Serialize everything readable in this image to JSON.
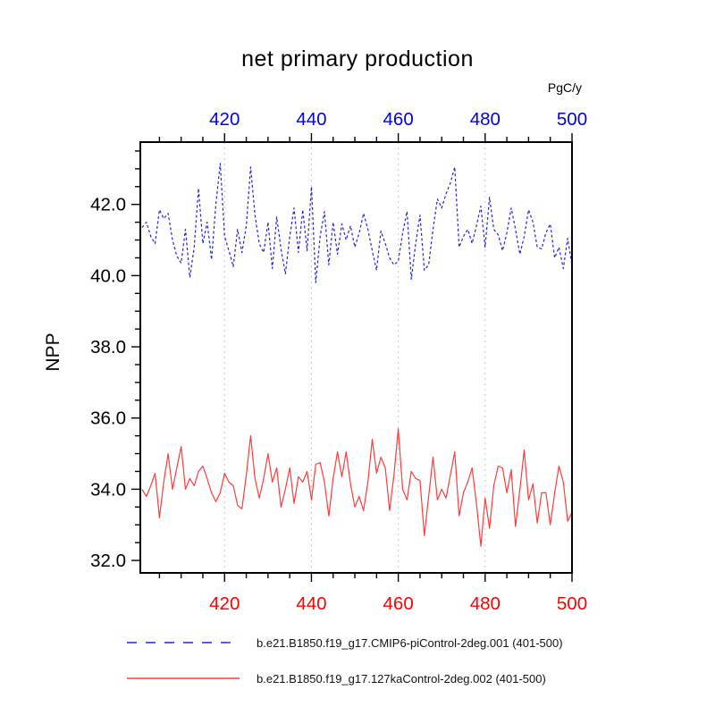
{
  "title": "net primary production",
  "unit_label": "PgC/y",
  "y_axis_label": "NPP",
  "legend": [
    {
      "label": "b.e21.B1850.f19_g17.CMIP6-piControl-2deg.001 (401-500)",
      "color": "#2222dd",
      "dash": "11 10"
    },
    {
      "label": "b.e21.B1850.f19_g17.127kaControl-2deg.002 (401-500)",
      "color": "#ff3b3b",
      "dash": ""
    }
  ],
  "colors": {
    "frame": "#000000",
    "gridline": "#c8c8c8",
    "top_axis_labels": "#0000ee",
    "bottom_axis_labels": "#ff0000",
    "left_axis_labels": "#000000"
  },
  "chart_data": {
    "type": "line",
    "title": "net primary production",
    "ylabel": "NPP",
    "unit": "PgC/y",
    "xlim": [
      400.6,
      500
    ],
    "ylim": [
      31.65,
      43.75
    ],
    "x_major_ticks": [
      420,
      440,
      460,
      480,
      500
    ],
    "x_minor_start": 405,
    "x_minor_end": 495,
    "x_minor_step": 5,
    "y_major_ticks": [
      32.0,
      34.0,
      36.0,
      38.0,
      40.0,
      42.0
    ],
    "y_minor_step": 0.5,
    "gridlines_x": [
      420,
      440,
      460,
      480
    ],
    "grid_style": "vertical-dashed",
    "legend_position": "bottom-left",
    "x": [
      401,
      402,
      403,
      404,
      405,
      406,
      407,
      408,
      409,
      410,
      411,
      412,
      413,
      414,
      415,
      416,
      417,
      418,
      419,
      420,
      421,
      422,
      423,
      424,
      425,
      426,
      427,
      428,
      429,
      430,
      431,
      432,
      433,
      434,
      435,
      436,
      437,
      438,
      439,
      440,
      441,
      442,
      443,
      444,
      445,
      446,
      447,
      448,
      449,
      450,
      451,
      452,
      453,
      454,
      455,
      456,
      457,
      458,
      459,
      460,
      461,
      462,
      463,
      464,
      465,
      466,
      467,
      468,
      469,
      470,
      471,
      472,
      473,
      474,
      475,
      476,
      477,
      478,
      479,
      480,
      481,
      482,
      483,
      484,
      485,
      486,
      487,
      488,
      489,
      490,
      491,
      492,
      493,
      494,
      495,
      496,
      497,
      498,
      499,
      500
    ],
    "series": [
      {
        "id": "piControl",
        "name": "b.e21.B1850.f19_g17.CMIP6-piControl-2deg.001 (401-500)",
        "color": "#2222dd",
        "dash": "3 2.6",
        "values": [
          41.35,
          41.5,
          41.1,
          40.9,
          41.85,
          41.6,
          41.75,
          41.0,
          40.55,
          40.35,
          41.3,
          39.95,
          40.8,
          42.45,
          40.9,
          41.5,
          40.45,
          42.0,
          43.15,
          41.1,
          40.7,
          40.25,
          41.3,
          40.65,
          41.4,
          43.05,
          41.7,
          40.9,
          40.65,
          41.5,
          40.2,
          41.65,
          40.75,
          40.05,
          41.1,
          41.9,
          40.65,
          41.85,
          40.7,
          42.5,
          39.8,
          41.1,
          41.8,
          40.3,
          41.5,
          40.6,
          41.45,
          41.0,
          41.4,
          40.8,
          41.2,
          41.75,
          41.3,
          40.7,
          40.15,
          41.25,
          40.9,
          40.5,
          40.3,
          40.4,
          41.2,
          41.8,
          39.9,
          40.9,
          41.7,
          40.15,
          40.3,
          41.3,
          42.15,
          41.9,
          42.3,
          42.6,
          43.05,
          40.8,
          41.1,
          41.3,
          40.9,
          41.4,
          41.95,
          40.8,
          42.2,
          41.3,
          41.15,
          40.7,
          41.2,
          41.9,
          41.3,
          40.6,
          41.1,
          41.85,
          41.5,
          40.8,
          40.75,
          41.2,
          41.45,
          40.5,
          40.8,
          40.2,
          41.05,
          40.3
        ]
      },
      {
        "id": "127kaControl",
        "name": "b.e21.B1850.f19_g17.127kaControl-2deg.002 (401-500)",
        "color": "#ff3b3b",
        "dash": "",
        "values": [
          34.0,
          33.8,
          34.1,
          34.45,
          33.2,
          34.2,
          35.0,
          34.0,
          34.6,
          35.2,
          34.0,
          34.3,
          34.1,
          34.5,
          34.65,
          34.3,
          33.9,
          33.65,
          33.9,
          34.45,
          34.2,
          34.1,
          33.55,
          33.45,
          34.4,
          35.5,
          34.3,
          33.75,
          34.3,
          35.0,
          34.2,
          34.6,
          33.5,
          34.0,
          34.6,
          33.6,
          34.35,
          34.2,
          34.5,
          33.7,
          34.7,
          34.75,
          34.2,
          33.25,
          34.3,
          35.05,
          34.35,
          35.05,
          34.15,
          33.5,
          33.8,
          33.4,
          34.2,
          35.4,
          34.45,
          34.9,
          34.6,
          33.4,
          34.4,
          35.7,
          34.0,
          33.7,
          34.5,
          34.3,
          34.25,
          32.7,
          33.8,
          34.9,
          33.7,
          34.0,
          33.75,
          34.4,
          35.05,
          33.25,
          33.9,
          34.2,
          34.6,
          33.6,
          32.4,
          33.75,
          32.9,
          34.1,
          34.65,
          34.6,
          33.9,
          34.55,
          32.95,
          34.0,
          35.1,
          33.7,
          34.15,
          33.05,
          33.9,
          33.9,
          33.0,
          33.9,
          34.65,
          34.2,
          33.1,
          33.35
        ]
      }
    ]
  }
}
